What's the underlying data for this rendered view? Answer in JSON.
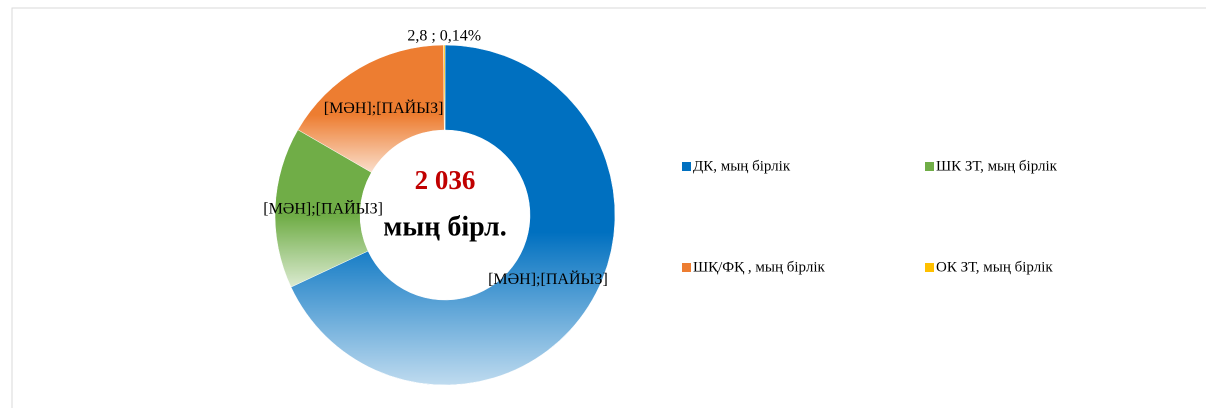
{
  "chart_data": {
    "type": "donut",
    "categories": [
      "ДК,  мың бірлік",
      "ШК ЗТ, мың бірлік",
      "ШҚ/ФҚ  , мың бірлік",
      "ОК ЗТ, мың бірлік"
    ],
    "values": [
      1385,
      312,
      336,
      2.8
    ],
    "value_labels": [
      "[МӘН];[ПАЙЫЗ]",
      "[МӘН];[ПАЙЫЗ]",
      "[МӘН];[ПАЙЫЗ]",
      "2,8 ; 0,14%"
    ],
    "colors": [
      "#0070c0",
      "#70ad47",
      "#ed7d31",
      "#ffc000"
    ],
    "center_text": [
      "2 036",
      "мың бірл."
    ],
    "legend": "right"
  }
}
